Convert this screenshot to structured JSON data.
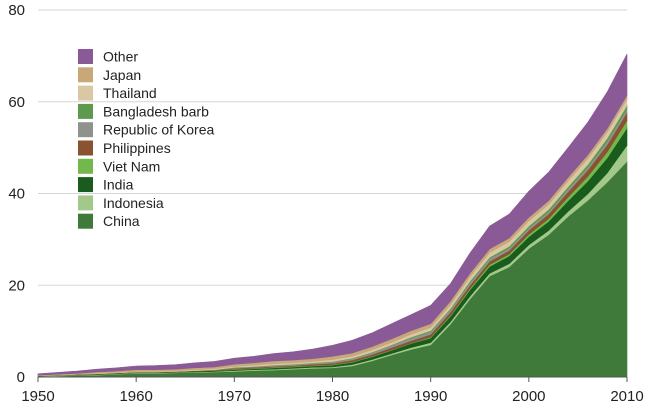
{
  "chart_data": {
    "type": "area",
    "stacked": true,
    "title": "",
    "xlabel": "",
    "ylabel": "",
    "xlim": [
      1950,
      2010
    ],
    "ylim": [
      0,
      80
    ],
    "x_ticks": [
      1950,
      1960,
      1970,
      1980,
      1990,
      2000,
      2010
    ],
    "y_ticks": [
      0,
      20,
      40,
      60,
      80
    ],
    "grid": "horizontal",
    "legend_position": "top-left",
    "x": [
      1950,
      1952,
      1954,
      1956,
      1958,
      1960,
      1962,
      1964,
      1966,
      1968,
      1970,
      1972,
      1974,
      1976,
      1978,
      1980,
      1982,
      1984,
      1986,
      1988,
      1990,
      1992,
      1994,
      1996,
      1998,
      2000,
      2002,
      2004,
      2006,
      2008,
      2010
    ],
    "series": [
      {
        "name": "China",
        "color": "#3f7a3a",
        "values": [
          0.1,
          0.2,
          0.3,
          0.4,
          0.6,
          0.8,
          0.8,
          0.9,
          1.0,
          1.1,
          1.2,
          1.4,
          1.5,
          1.7,
          1.9,
          2.0,
          2.4,
          3.5,
          4.8,
          6.0,
          7.0,
          11.5,
          17.0,
          22.0,
          24.0,
          28.0,
          31.0,
          35.0,
          38.5,
          42.5,
          47.0
        ]
      },
      {
        "name": "Indonesia",
        "color": "#a3c98a",
        "values": [
          0.1,
          0.1,
          0.1,
          0.1,
          0.1,
          0.1,
          0.1,
          0.1,
          0.1,
          0.1,
          0.2,
          0.2,
          0.2,
          0.2,
          0.2,
          0.2,
          0.3,
          0.3,
          0.3,
          0.4,
          0.5,
          0.5,
          0.6,
          0.6,
          0.7,
          0.8,
          0.9,
          1.1,
          1.4,
          2.0,
          3.5
        ]
      },
      {
        "name": "India",
        "color": "#1a5c1e",
        "values": [
          0.1,
          0.1,
          0.1,
          0.1,
          0.1,
          0.1,
          0.1,
          0.1,
          0.2,
          0.2,
          0.2,
          0.2,
          0.3,
          0.3,
          0.3,
          0.4,
          0.5,
          0.6,
          0.7,
          0.9,
          1.0,
          1.2,
          1.4,
          1.5,
          1.7,
          1.8,
          2.0,
          2.3,
          2.8,
          3.3,
          3.8
        ]
      },
      {
        "name": "Viet Nam",
        "color": "#72b84d",
        "values": [
          0.0,
          0.0,
          0.0,
          0.0,
          0.0,
          0.0,
          0.0,
          0.0,
          0.0,
          0.0,
          0.1,
          0.1,
          0.1,
          0.1,
          0.1,
          0.1,
          0.1,
          0.1,
          0.1,
          0.1,
          0.2,
          0.2,
          0.3,
          0.4,
          0.4,
          0.5,
          0.6,
          0.8,
          1.0,
          1.3,
          1.6
        ]
      },
      {
        "name": "Philippines",
        "color": "#8b5232",
        "values": [
          0.0,
          0.0,
          0.1,
          0.1,
          0.1,
          0.1,
          0.1,
          0.1,
          0.1,
          0.1,
          0.2,
          0.2,
          0.2,
          0.2,
          0.3,
          0.3,
          0.4,
          0.4,
          0.5,
          0.5,
          0.6,
          0.7,
          0.7,
          0.7,
          0.8,
          0.9,
          1.0,
          1.2,
          1.4,
          1.6,
          1.8
        ]
      },
      {
        "name": "Republic of Korea",
        "color": "#8e948d",
        "values": [
          0.0,
          0.0,
          0.0,
          0.0,
          0.0,
          0.0,
          0.0,
          0.0,
          0.0,
          0.1,
          0.1,
          0.1,
          0.2,
          0.2,
          0.2,
          0.3,
          0.3,
          0.4,
          0.5,
          0.6,
          0.6,
          0.6,
          0.6,
          0.6,
          0.5,
          0.5,
          0.5,
          0.6,
          0.6,
          0.7,
          0.7
        ]
      },
      {
        "name": "Bangladesh barb",
        "color": "#5e9a4e",
        "values": [
          0.0,
          0.0,
          0.0,
          0.0,
          0.0,
          0.0,
          0.0,
          0.0,
          0.0,
          0.0,
          0.1,
          0.1,
          0.1,
          0.1,
          0.1,
          0.1,
          0.1,
          0.1,
          0.1,
          0.2,
          0.2,
          0.2,
          0.3,
          0.3,
          0.4,
          0.4,
          0.5,
          0.5,
          0.6,
          0.7,
          0.8
        ]
      },
      {
        "name": "Thailand",
        "color": "#d9c8a3",
        "values": [
          0.0,
          0.0,
          0.0,
          0.1,
          0.1,
          0.1,
          0.1,
          0.1,
          0.2,
          0.2,
          0.2,
          0.3,
          0.3,
          0.3,
          0.3,
          0.4,
          0.4,
          0.5,
          0.5,
          0.6,
          0.7,
          0.8,
          0.9,
          1.0,
          1.0,
          1.1,
          1.1,
          1.2,
          1.3,
          1.3,
          1.4
        ]
      },
      {
        "name": "Japan",
        "color": "#c8a878",
        "values": [
          0.1,
          0.2,
          0.2,
          0.3,
          0.3,
          0.4,
          0.4,
          0.4,
          0.4,
          0.4,
          0.5,
          0.5,
          0.6,
          0.6,
          0.6,
          0.7,
          0.7,
          0.7,
          0.8,
          0.8,
          0.8,
          0.8,
          0.8,
          0.8,
          0.8,
          0.8,
          0.8,
          0.8,
          0.8,
          0.8,
          0.8
        ]
      },
      {
        "name": "Other",
        "color": "#8a5a96",
        "values": [
          0.3,
          0.4,
          0.5,
          0.6,
          0.7,
          0.8,
          0.9,
          1.0,
          1.1,
          1.2,
          1.3,
          1.4,
          1.6,
          1.8,
          2.1,
          2.4,
          2.8,
          3.0,
          3.3,
          3.5,
          4.0,
          3.8,
          4.4,
          5.0,
          5.2,
          5.7,
          6.2,
          6.5,
          7.1,
          8.0,
          9.0
        ]
      }
    ]
  }
}
